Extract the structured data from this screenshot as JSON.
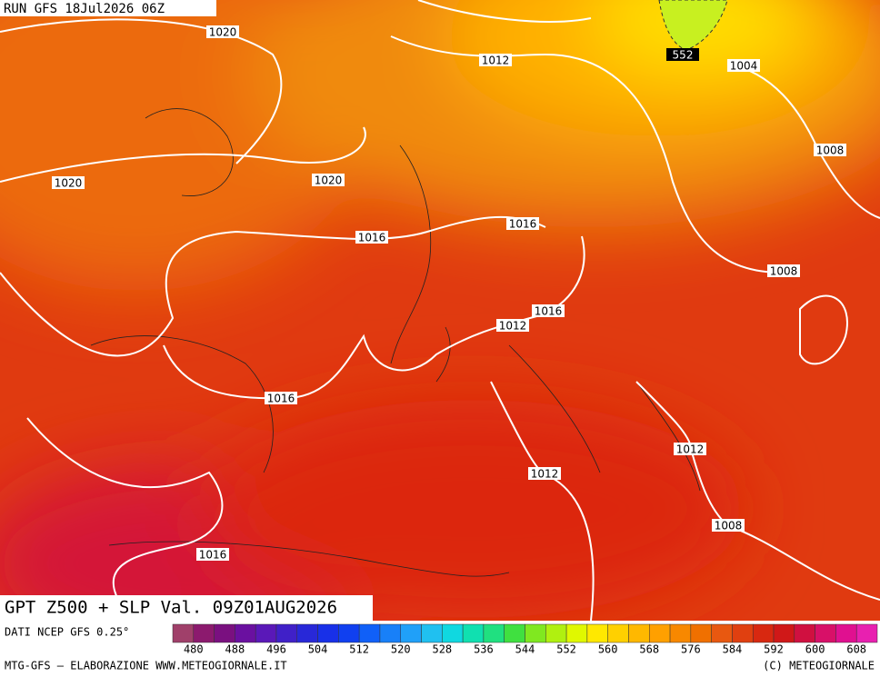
{
  "header": {
    "run": "RUN GFS 18Jul2026 06Z"
  },
  "title": "GPT Z500 + SLP Val. 09Z01AUG2026",
  "source": "DATI NCEP GFS 0.25°",
  "credit_left": "MTG-GFS — ELABORAZIONE WWW.METEOGIORNALE.IT",
  "credit_right": "(C) METEOGIORNALE",
  "colorbar": {
    "colors": [
      "#a0406a",
      "#8c1a6e",
      "#7a1080",
      "#6a10a0",
      "#5a18b8",
      "#4020c8",
      "#2828d8",
      "#1830e8",
      "#1040f0",
      "#1060f8",
      "#1880f8",
      "#20a0f8",
      "#20c0f0",
      "#10d8e0",
      "#10e0b0",
      "#20e080",
      "#40e040",
      "#80e820",
      "#b0f010",
      "#e0f800",
      "#ffe800",
      "#ffd000",
      "#ffb800",
      "#ffa000",
      "#f88800",
      "#f07000",
      "#e85810",
      "#e04010",
      "#d82810",
      "#d01818",
      "#d01040",
      "#d81068",
      "#e01090",
      "#e820b0"
    ],
    "labels": [
      480,
      488,
      496,
      504,
      512,
      520,
      528,
      536,
      544,
      552,
      560,
      568,
      576,
      584,
      592,
      600,
      608
    ]
  },
  "isobar_labels": [
    "1020",
    "1012",
    "552",
    "1004",
    "1008",
    "1020",
    "1020",
    "1016",
    "1016",
    "1008",
    "1016",
    "1012",
    "1016",
    "1012",
    "1012",
    "1008",
    "1016"
  ]
}
